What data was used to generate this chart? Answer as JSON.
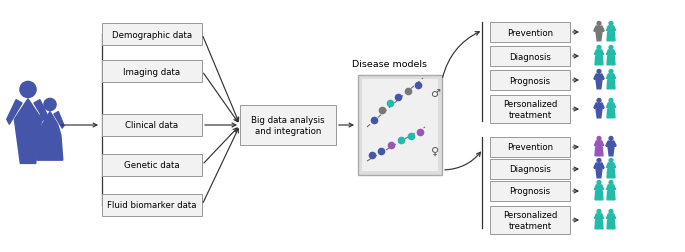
{
  "bg_color": "#ffffff",
  "input_labels": [
    "Demographic data",
    "Imaging data",
    "Clinical data",
    "Genetic data",
    "Fluid biomarker data"
  ],
  "center_label": "Big data analysis\nand integration",
  "disease_models_label": "Disease models",
  "output_labels_top": [
    "Prevention",
    "Diagnosis",
    "Prognosis",
    "Personalized\ntreatment"
  ],
  "output_labels_bottom": [
    "Prevention",
    "Diagnosis",
    "Prognosis",
    "Personalized\ntreatment"
  ],
  "male_symbol": "♂",
  "female_symbol": "♀",
  "color_blue": "#4455aa",
  "color_purple": "#9955bb",
  "color_teal": "#22bbaa",
  "color_gray": "#777777",
  "color_dark": "#333333",
  "box_edge_color": "#999999",
  "box_face_color": "#f2f2f2"
}
